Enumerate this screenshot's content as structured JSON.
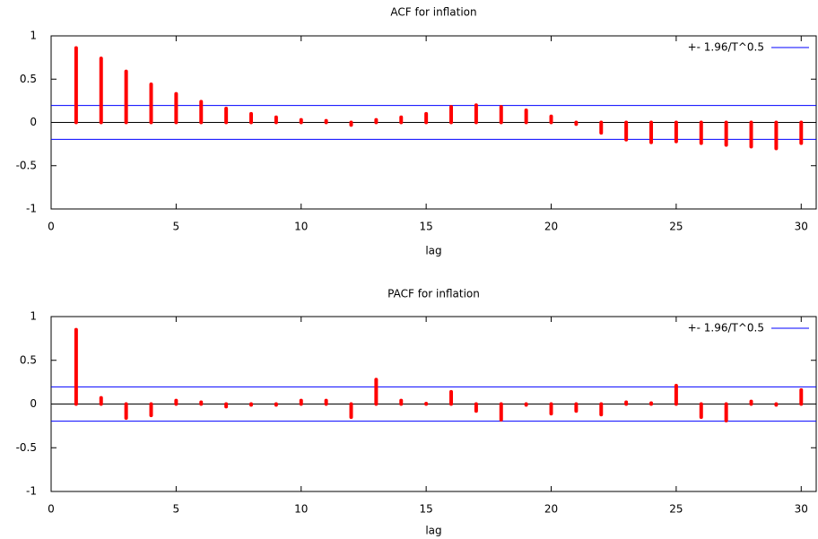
{
  "chart_data": [
    {
      "type": "stem",
      "title": "ACF for inflation",
      "x_label": "lag",
      "x": [
        1,
        2,
        3,
        4,
        5,
        6,
        7,
        8,
        9,
        10,
        11,
        12,
        13,
        14,
        15,
        16,
        17,
        18,
        19,
        20,
        21,
        22,
        23,
        24,
        25,
        26,
        27,
        28,
        29,
        30
      ],
      "values": [
        0.86,
        0.74,
        0.59,
        0.44,
        0.33,
        0.24,
        0.16,
        0.1,
        0.06,
        0.03,
        0.02,
        -0.03,
        0.03,
        0.06,
        0.1,
        0.18,
        0.2,
        0.18,
        0.14,
        0.07,
        -0.02,
        -0.12,
        -0.2,
        -0.23,
        -0.22,
        -0.24,
        -0.26,
        -0.28,
        -0.3,
        -0.24
      ],
      "color": "#ff0000",
      "confidence_bands": {
        "label": "+- 1.96/T^0.5",
        "color": "#0000ff",
        "values": [
          0.196,
          -0.196
        ]
      },
      "xlim": [
        0,
        30.6
      ],
      "xticks": [
        0,
        5,
        10,
        15,
        20,
        25,
        30
      ],
      "ylim": [
        -1,
        1
      ],
      "yticks": [
        -1,
        -0.5,
        0,
        0.5,
        1
      ],
      "legend": "top-right"
    },
    {
      "type": "stem",
      "title": "PACF for inflation",
      "x_label": "lag",
      "x": [
        1,
        2,
        3,
        4,
        5,
        6,
        7,
        8,
        9,
        10,
        11,
        12,
        13,
        14,
        15,
        16,
        17,
        18,
        19,
        20,
        21,
        22,
        23,
        24,
        25,
        26,
        27,
        28,
        29,
        30
      ],
      "values": [
        0.85,
        0.07,
        -0.16,
        -0.13,
        0.04,
        0.02,
        -0.03,
        -0.01,
        -0.01,
        0.04,
        0.04,
        -0.15,
        0.28,
        0.04,
        0.005,
        0.14,
        -0.08,
        -0.18,
        -0.01,
        -0.11,
        -0.08,
        -0.12,
        0.02,
        0.01,
        0.21,
        -0.15,
        -0.19,
        0.03,
        -0.01,
        0.16
      ],
      "color": "#ff0000",
      "confidence_bands": {
        "label": "+- 1.96/T^0.5",
        "color": "#0000ff",
        "values": [
          0.196,
          -0.196
        ]
      },
      "xlim": [
        0,
        30.6
      ],
      "xticks": [
        0,
        5,
        10,
        15,
        20,
        25,
        30
      ],
      "ylim": [
        -1,
        1
      ],
      "yticks": [
        -1,
        -0.5,
        0,
        0.5,
        1
      ],
      "legend": "top-right"
    }
  ]
}
